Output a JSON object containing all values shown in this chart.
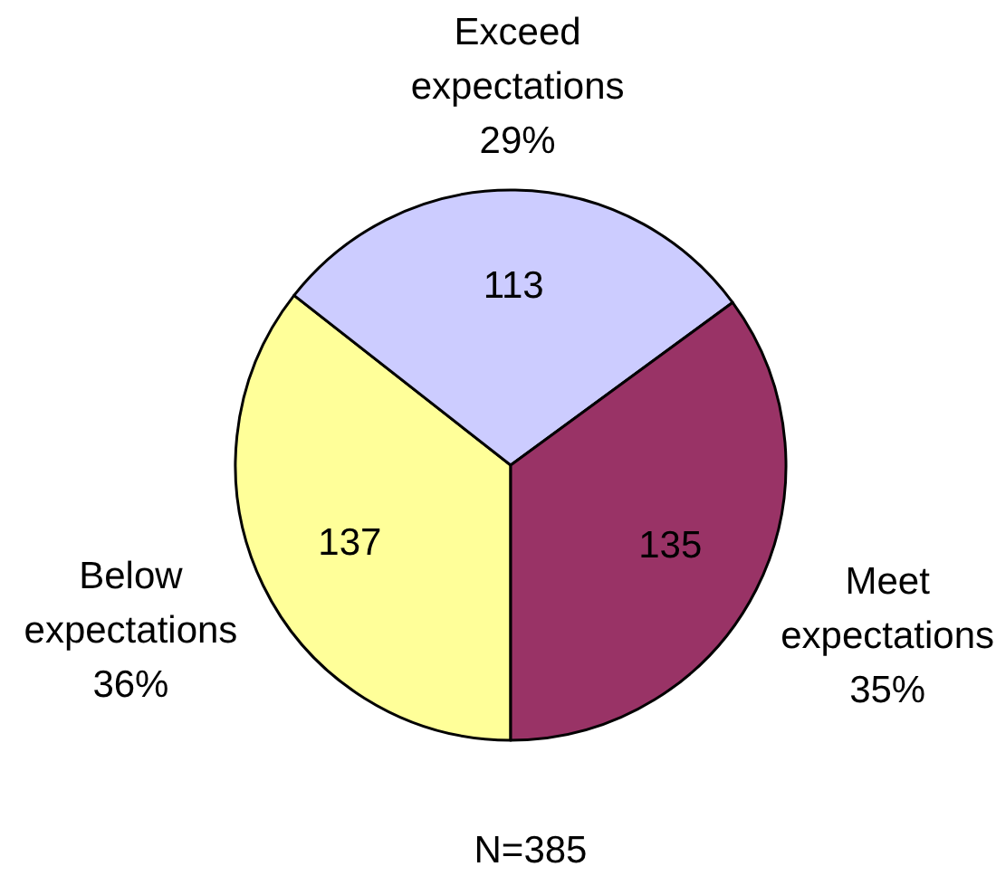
{
  "chart_data": {
    "type": "pie",
    "categories": [
      "Below expectations",
      "Exceed expectations",
      "Meet expectations"
    ],
    "values": [
      137,
      113,
      135
    ],
    "colors": [
      "#ffff99",
      "#ccccff",
      "#993366"
    ],
    "data_labels": true,
    "annotations": [
      {
        "text": "36%",
        "x": "Below expectations"
      },
      {
        "text": "29%",
        "x": "Exceed expectations"
      },
      {
        "text": "35%",
        "x": "Meet expectations"
      },
      "N=385"
    ]
  }
}
